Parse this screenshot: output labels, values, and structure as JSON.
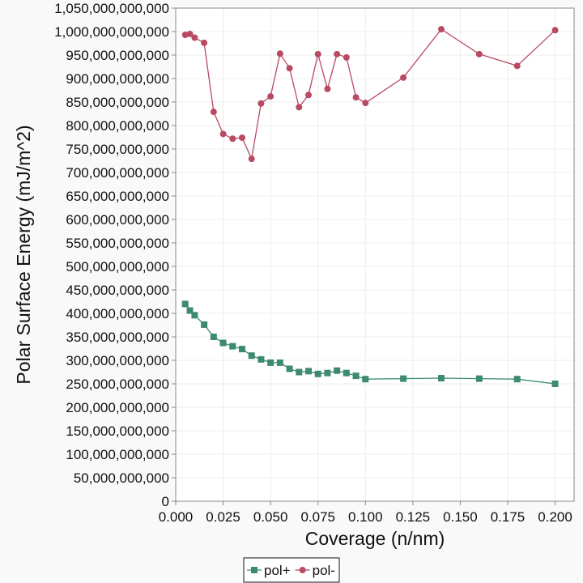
{
  "chart_data": {
    "type": "line",
    "xlabel": "Coverage (n/nm)",
    "ylabel": "Polar Surface Energy (mJ/m^2)",
    "xlim": [
      0,
      0.21
    ],
    "ylim": [
      0,
      1050000000000
    ],
    "x_ticks": [
      "0.000",
      "0.025",
      "0.050",
      "0.075",
      "0.100",
      "0.125",
      "0.150",
      "0.175",
      "0.200"
    ],
    "y_ticks": [
      "0",
      "50,000,000,000",
      "100,000,000,000",
      "150,000,000,000",
      "200,000,000,000",
      "250,000,000,000",
      "300,000,000,000",
      "350,000,000,000",
      "400,000,000,000",
      "450,000,000,000",
      "500,000,000,000",
      "550,000,000,000",
      "600,000,000,000",
      "650,000,000,000",
      "700,000,000,000",
      "750,000,000,000",
      "800,000,000,000",
      "850,000,000,000",
      "900,000,000,000",
      "950,000,000,000",
      "1,000,000,000,000",
      "1,050,000,000,000"
    ],
    "grid": true,
    "legend_position": "bottom",
    "series": [
      {
        "name": "pol+",
        "color": "#3d8b6e",
        "marker": "square",
        "x": [
          0.005,
          0.0075,
          0.01,
          0.015,
          0.02,
          0.025,
          0.03,
          0.035,
          0.04,
          0.045,
          0.05,
          0.055,
          0.06,
          0.065,
          0.07,
          0.075,
          0.08,
          0.085,
          0.09,
          0.095,
          0.1,
          0.12,
          0.14,
          0.16,
          0.18,
          0.2
        ],
        "y": [
          420000000000,
          406000000000,
          396000000000,
          376000000000,
          350000000000,
          337000000000,
          330000000000,
          324000000000,
          310000000000,
          302000000000,
          295000000000,
          295000000000,
          282000000000,
          275000000000,
          277000000000,
          271000000000,
          273000000000,
          278000000000,
          273000000000,
          267000000000,
          260000000000,
          261000000000,
          262000000000,
          261000000000,
          260000000000,
          250000000000
        ]
      },
      {
        "name": "pol-",
        "color": "#b84a62",
        "marker": "circle",
        "x": [
          0.005,
          0.0075,
          0.01,
          0.015,
          0.02,
          0.025,
          0.03,
          0.035,
          0.04,
          0.045,
          0.05,
          0.055,
          0.06,
          0.065,
          0.07,
          0.075,
          0.08,
          0.085,
          0.09,
          0.095,
          0.1,
          0.12,
          0.14,
          0.16,
          0.18,
          0.2
        ],
        "y": [
          993000000000,
          995000000000,
          987000000000,
          976000000000,
          829000000000,
          782000000000,
          772000000000,
          774000000000,
          729000000000,
          847000000000,
          862000000000,
          953000000000,
          922000000000,
          839000000000,
          865000000000,
          952000000000,
          878000000000,
          952000000000,
          945000000000,
          860000000000,
          848000000000,
          902000000000,
          1005000000000,
          952000000000,
          927000000000,
          1003000000000
        ]
      }
    ]
  }
}
